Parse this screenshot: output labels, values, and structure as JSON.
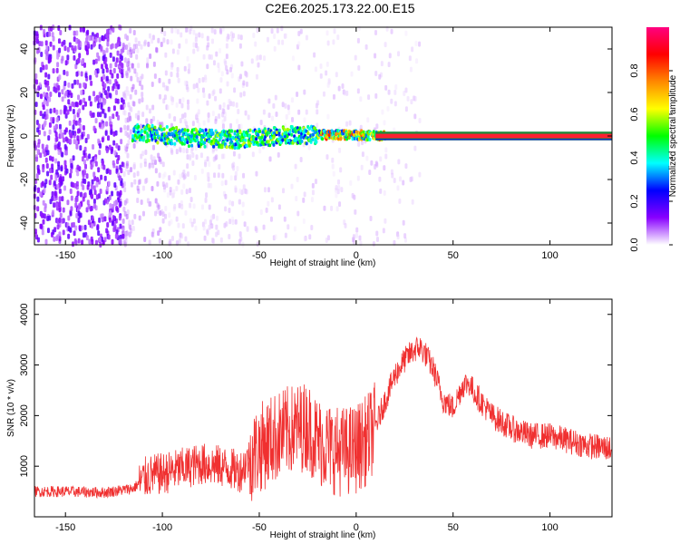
{
  "title": "C2E6.2025.173.22.00.E15",
  "colors": {
    "signal": "#f03030",
    "axis": "#000000",
    "noise": "#8a2be2"
  },
  "chart_data": [
    {
      "type": "heatmap",
      "title": "C2E6.2025.173.22.00.E15",
      "xlabel": "Height of straight line (km)",
      "ylabel": "Frequency (Hz)",
      "xlim": [
        -166,
        132
      ],
      "ylim": [
        -50,
        50
      ],
      "xticks": [
        -150,
        -100,
        -50,
        0,
        50,
        100
      ],
      "yticks": [
        -40,
        -20,
        0,
        20,
        40
      ],
      "colorbar": {
        "label": "Normalized spectral amplitude",
        "range": [
          0,
          1
        ],
        "ticks": [
          "0.0",
          "0.2",
          "0.4",
          "0.6",
          "0.8"
        ],
        "colormap": [
          "#ffffff",
          "#8800ff",
          "#0000ff",
          "#00ffff",
          "#00ff00",
          "#ffff00",
          "#ff8800",
          "#ff0000",
          "#ff0080"
        ]
      },
      "track": {
        "x": [
          -115,
          -100,
          -90,
          -80,
          -70,
          -60,
          -50,
          -40,
          -30,
          -20,
          -10,
          0,
          10,
          20,
          132
        ],
        "y": [
          1.5,
          0.5,
          -0.5,
          -1,
          -1.5,
          -1.5,
          -1,
          0,
          0.5,
          0.5,
          0.5,
          0.5,
          0,
          0,
          0
        ]
      }
    },
    {
      "type": "line",
      "xlabel": "Height of straight line (km)",
      "ylabel": "SNR (10 * v/v)",
      "xlim": [
        -166,
        132
      ],
      "ylim": [
        0,
        4300
      ],
      "xticks": [
        -150,
        -100,
        -50,
        0,
        50,
        100
      ],
      "yticks": [
        1000,
        2000,
        3000,
        4000
      ],
      "series": [
        {
          "x": [
            -166,
            -150,
            -130,
            -115,
            -108,
            -100,
            -90,
            -80,
            -70,
            -60,
            -55,
            -50,
            -45,
            -40,
            -35,
            -30,
            -25,
            -22,
            -20,
            -15,
            -10,
            -5,
            0,
            5,
            10,
            15,
            20,
            25,
            30,
            33,
            36,
            40,
            45,
            50,
            55,
            58,
            62,
            70,
            80,
            90,
            100,
            110,
            120,
            132
          ],
          "y": [
            500,
            500,
            480,
            560,
            800,
            850,
            950,
            1050,
            1000,
            900,
            1150,
            1350,
            1500,
            1600,
            1700,
            1750,
            1800,
            1600,
            1500,
            1400,
            1300,
            1300,
            1350,
            1500,
            1800,
            2300,
            2800,
            3100,
            3300,
            3350,
            3200,
            2900,
            2300,
            2150,
            2600,
            2650,
            2400,
            2000,
            1750,
            1600,
            1600,
            1500,
            1400,
            1350
          ]
        }
      ]
    }
  ]
}
